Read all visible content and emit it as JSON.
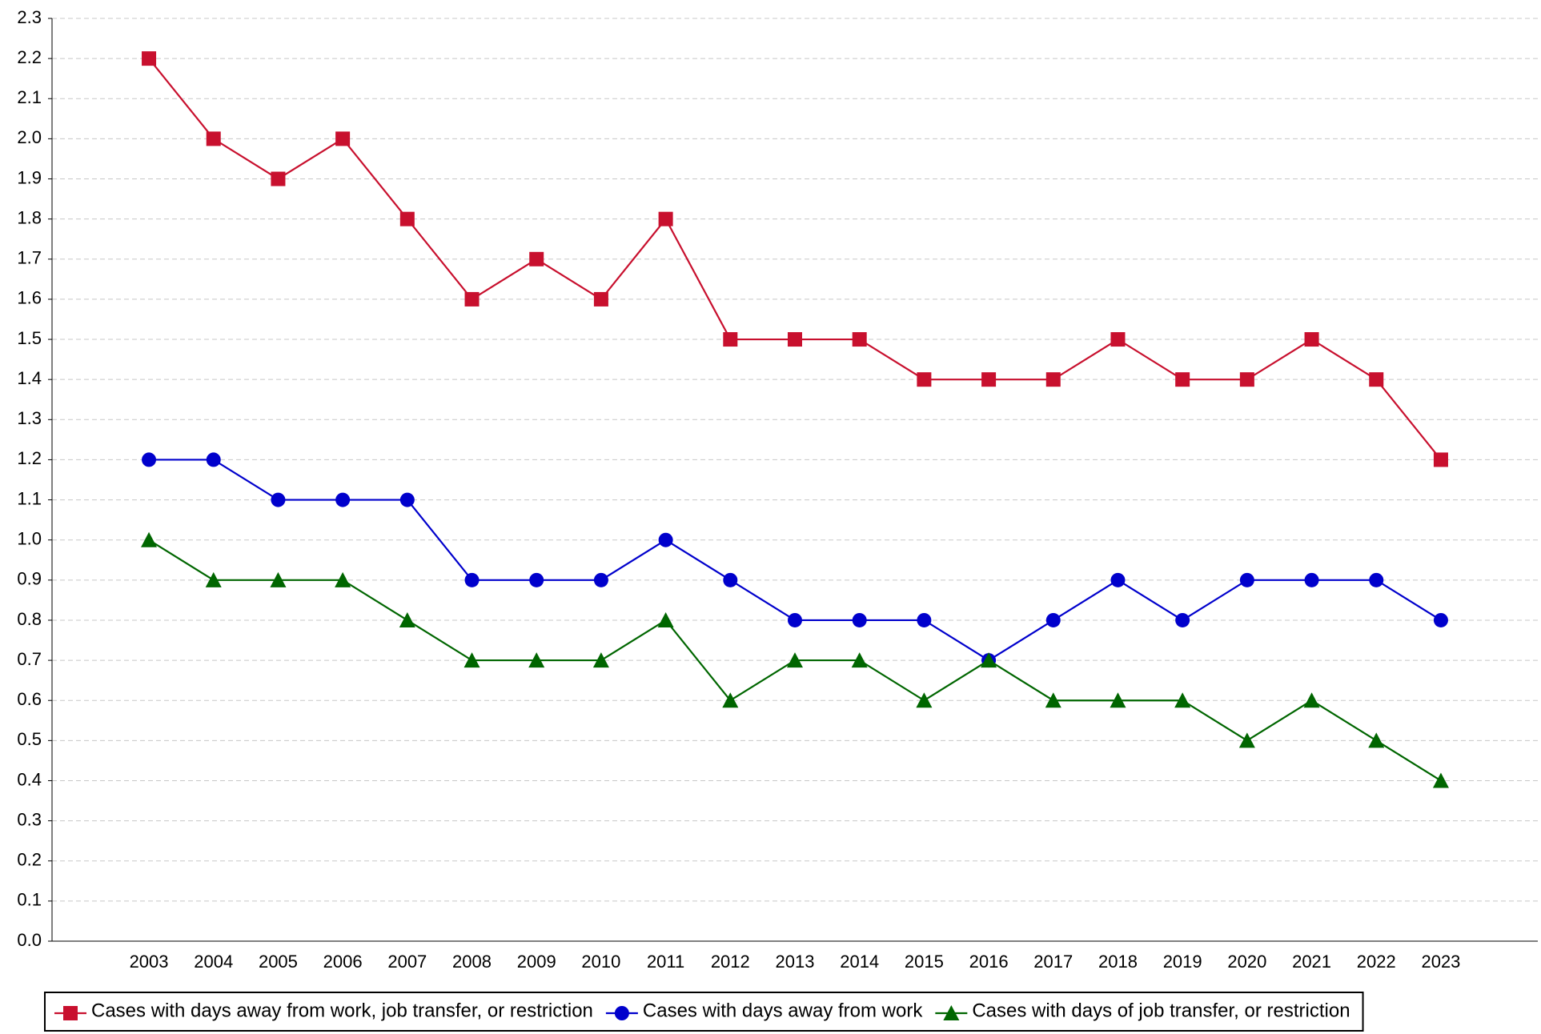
{
  "chart_data": {
    "type": "line",
    "categories": [
      "2003",
      "2004",
      "2005",
      "2006",
      "2007",
      "2008",
      "2009",
      "2010",
      "2011",
      "2012",
      "2013",
      "2014",
      "2015",
      "2016",
      "2017",
      "2018",
      "2019",
      "2020",
      "2021",
      "2022",
      "2023"
    ],
    "series": [
      {
        "name": "Cases with days away from work, job transfer, or restriction",
        "color": "#c8102e",
        "marker": "square",
        "values": [
          2.2,
          2.0,
          1.9,
          2.0,
          1.8,
          1.6,
          1.7,
          1.6,
          1.8,
          1.5,
          1.5,
          1.5,
          1.4,
          1.4,
          1.4,
          1.5,
          1.4,
          1.4,
          1.5,
          1.4,
          1.2
        ]
      },
      {
        "name": "Cases with days away from work",
        "color": "#0000cc",
        "marker": "circle",
        "values": [
          1.2,
          1.2,
          1.1,
          1.1,
          1.1,
          0.9,
          0.9,
          0.9,
          1.0,
          0.9,
          0.8,
          0.8,
          0.8,
          0.7,
          0.8,
          0.9,
          0.8,
          0.9,
          0.9,
          0.9,
          0.8
        ]
      },
      {
        "name": "Cases with days of job transfer, or restriction",
        "color": "#006600",
        "marker": "triangle",
        "values": [
          1.0,
          0.9,
          0.9,
          0.9,
          0.8,
          0.7,
          0.7,
          0.7,
          0.8,
          0.6,
          0.7,
          0.7,
          0.6,
          0.7,
          0.6,
          0.6,
          0.6,
          0.5,
          0.6,
          0.5,
          0.4
        ]
      }
    ],
    "ylim": [
      0,
      2.3
    ],
    "yticks": [
      {
        "value": 0,
        "label": "0.0"
      },
      0.1,
      0.2,
      0.3,
      0.4,
      0.5,
      0.6,
      0.7,
      0.8,
      0.9,
      {
        "value": 1,
        "label": "1.0"
      },
      1.1,
      1.2,
      1.3,
      1.4,
      1.5,
      1.6,
      1.7,
      1.8,
      1.9,
      {
        "value": 2,
        "label": "2.0"
      },
      2.1,
      2.2,
      2.3
    ],
    "grid": true,
    "legend": "bottom"
  }
}
